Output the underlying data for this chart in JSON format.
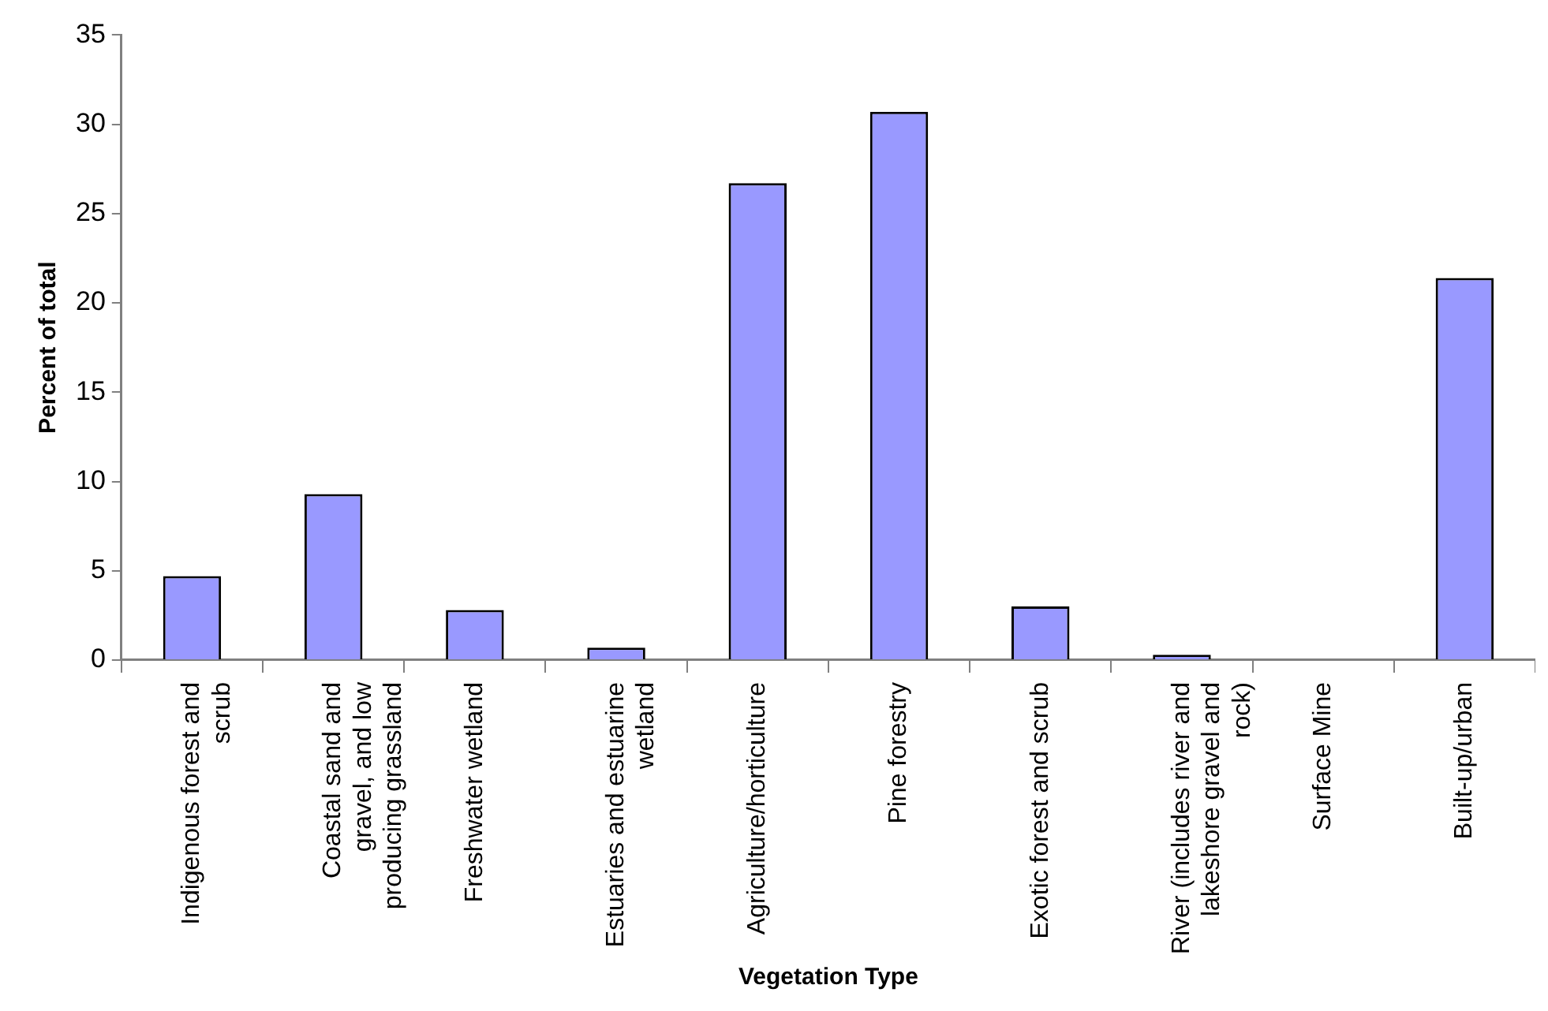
{
  "chart_data": {
    "type": "bar",
    "xlabel": "Vegetation Type",
    "ylabel": "Percent of total",
    "categories": [
      "Indigenous forest and scrub",
      "Coastal sand and gravel, and low producing grassland",
      "Freshwater wetland",
      "Estuaries and estuarine wetland",
      "Agriculture/horticulture",
      "Pine forestry",
      "Exotic forest and scrub",
      "River (includes river and lakeshore gravel and rock)",
      "Surface Mine",
      "Built-up/urban"
    ],
    "values": [
      4.7,
      9.3,
      2.8,
      0.7,
      26.7,
      30.7,
      3.0,
      0.3,
      0,
      21.4
    ],
    "color": "#9999ff",
    "ylim": [
      0,
      35
    ],
    "yticks": [
      0,
      5,
      10,
      15,
      20,
      25,
      30,
      35
    ],
    "grid": false,
    "legend": false
  }
}
